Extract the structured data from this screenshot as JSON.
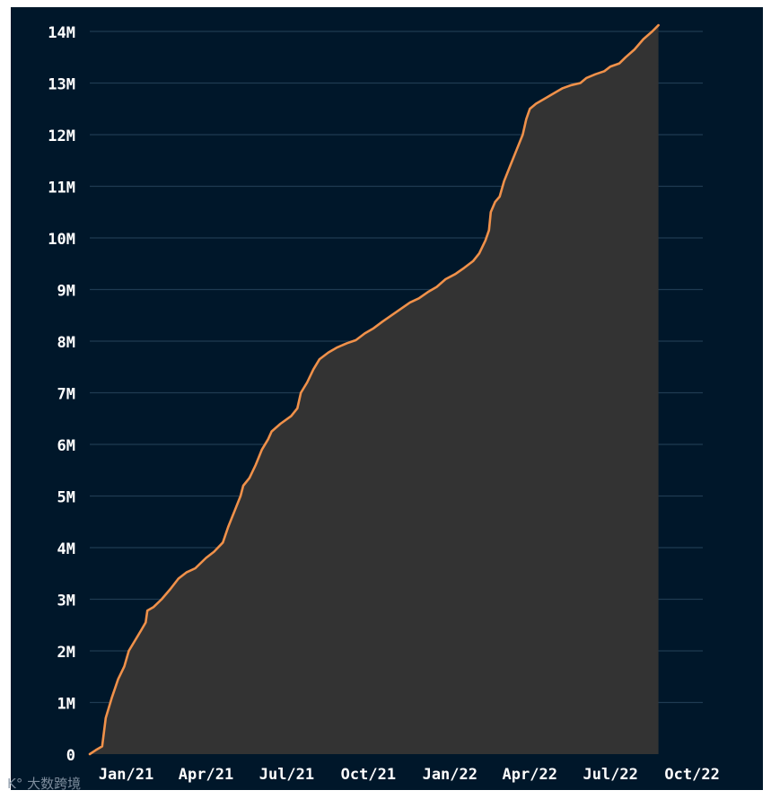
{
  "chart_data": {
    "type": "area",
    "title": "",
    "xlabel": "",
    "ylabel": "",
    "x_tick_labels": [
      "Jan/21",
      "Apr/21",
      "Jul/21",
      "Oct/21",
      "Jan/22",
      "Apr/22",
      "Jul/22",
      "Oct/22"
    ],
    "y_tick_labels": [
      "0",
      "1M",
      "2M",
      "3M",
      "4M",
      "5M",
      "6M",
      "7M",
      "8M",
      "9M",
      "10M",
      "11M",
      "12M",
      "13M",
      "14M"
    ],
    "ylim": [
      0,
      14000000
    ],
    "xlim": [
      "2020-11-21",
      "2022-10-13"
    ],
    "grid": true,
    "legend": "none",
    "colors": {
      "background": "#00172a",
      "area_fill": "#333333",
      "line": "#f0914a",
      "gridline": "#1f3b52",
      "tick_text": "#ffffff"
    },
    "series": [
      {
        "points": [
          [
            "2020-11-21",
            0
          ],
          [
            "2020-11-28",
            80000
          ],
          [
            "2020-12-05",
            150000
          ],
          [
            "2020-12-09",
            700000
          ],
          [
            "2020-12-16",
            1100000
          ],
          [
            "2020-12-23",
            1450000
          ],
          [
            "2020-12-30",
            1700000
          ],
          [
            "2021-01-04",
            2000000
          ],
          [
            "2021-01-11",
            2200000
          ],
          [
            "2021-01-18",
            2400000
          ],
          [
            "2021-01-23",
            2550000
          ],
          [
            "2021-01-25",
            2780000
          ],
          [
            "2021-02-01",
            2850000
          ],
          [
            "2021-02-10",
            3000000
          ],
          [
            "2021-02-20",
            3200000
          ],
          [
            "2021-03-01",
            3400000
          ],
          [
            "2021-03-10",
            3520000
          ],
          [
            "2021-03-20",
            3600000
          ],
          [
            "2021-04-01",
            3800000
          ],
          [
            "2021-04-10",
            3920000
          ],
          [
            "2021-04-20",
            4100000
          ],
          [
            "2021-04-26",
            4400000
          ],
          [
            "2021-05-03",
            4700000
          ],
          [
            "2021-05-10",
            5000000
          ],
          [
            "2021-05-13",
            5200000
          ],
          [
            "2021-05-20",
            5350000
          ],
          [
            "2021-05-27",
            5600000
          ],
          [
            "2021-06-03",
            5900000
          ],
          [
            "2021-06-10",
            6100000
          ],
          [
            "2021-06-14",
            6250000
          ],
          [
            "2021-06-24",
            6400000
          ],
          [
            "2021-07-06",
            6550000
          ],
          [
            "2021-07-13",
            6700000
          ],
          [
            "2021-07-17",
            7000000
          ],
          [
            "2021-07-24",
            7200000
          ],
          [
            "2021-07-31",
            7450000
          ],
          [
            "2021-08-07",
            7650000
          ],
          [
            "2021-08-17",
            7780000
          ],
          [
            "2021-08-27",
            7880000
          ],
          [
            "2021-09-07",
            7960000
          ],
          [
            "2021-09-17",
            8020000
          ],
          [
            "2021-09-27",
            8150000
          ],
          [
            "2021-10-07",
            8250000
          ],
          [
            "2021-10-17",
            8380000
          ],
          [
            "2021-10-27",
            8500000
          ],
          [
            "2021-11-07",
            8630000
          ],
          [
            "2021-11-17",
            8750000
          ],
          [
            "2021-11-27",
            8830000
          ],
          [
            "2021-12-07",
            8950000
          ],
          [
            "2021-12-17",
            9050000
          ],
          [
            "2021-12-27",
            9200000
          ],
          [
            "2022-01-07",
            9300000
          ],
          [
            "2022-01-17",
            9420000
          ],
          [
            "2022-01-27",
            9550000
          ],
          [
            "2022-02-03",
            9700000
          ],
          [
            "2022-02-10",
            9950000
          ],
          [
            "2022-02-14",
            10150000
          ],
          [
            "2022-02-16",
            10500000
          ],
          [
            "2022-02-21",
            10700000
          ],
          [
            "2022-02-26",
            10800000
          ],
          [
            "2022-03-03",
            11100000
          ],
          [
            "2022-03-10",
            11400000
          ],
          [
            "2022-03-17",
            11700000
          ],
          [
            "2022-03-24",
            12000000
          ],
          [
            "2022-03-28",
            12300000
          ],
          [
            "2022-04-01",
            12500000
          ],
          [
            "2022-04-08",
            12600000
          ],
          [
            "2022-04-18",
            12700000
          ],
          [
            "2022-04-28",
            12800000
          ],
          [
            "2022-05-08",
            12900000
          ],
          [
            "2022-05-18",
            12960000
          ],
          [
            "2022-05-28",
            13000000
          ],
          [
            "2022-06-04",
            13100000
          ],
          [
            "2022-06-14",
            13170000
          ],
          [
            "2022-06-24",
            13230000
          ],
          [
            "2022-07-01",
            13320000
          ],
          [
            "2022-07-11",
            13380000
          ],
          [
            "2022-07-18",
            13500000
          ],
          [
            "2022-07-28",
            13650000
          ],
          [
            "2022-08-07",
            13850000
          ],
          [
            "2022-08-17",
            14000000
          ],
          [
            "2022-08-24",
            14120000
          ]
        ]
      }
    ]
  },
  "watermark": {
    "text": "大数跨境"
  }
}
